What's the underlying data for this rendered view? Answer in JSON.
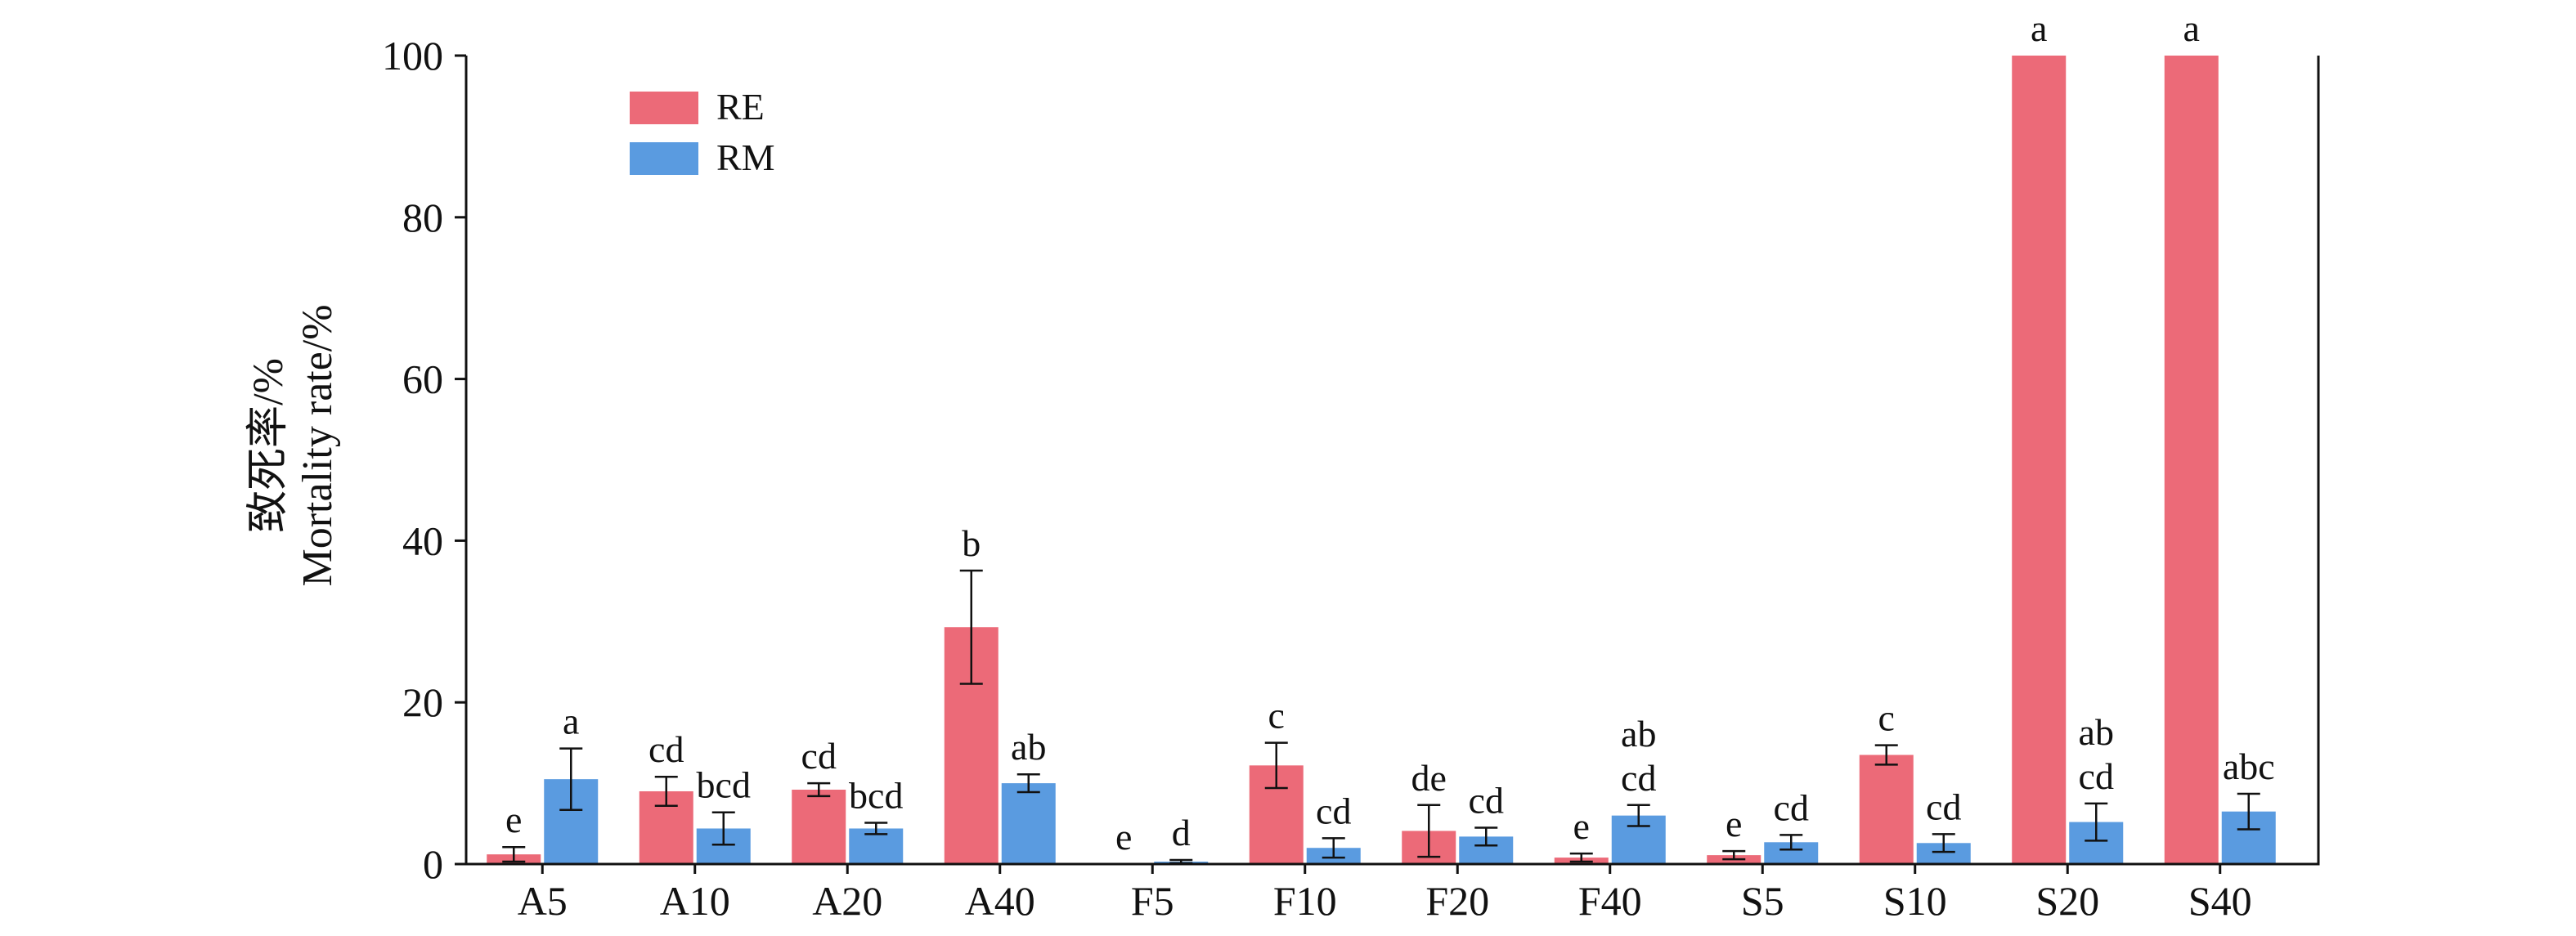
{
  "chart_data": {
    "type": "bar",
    "title": "",
    "xlabel": "",
    "ylabel_cn": "致死率/%",
    "ylabel_en": "Mortality rate/%",
    "ylim": [
      0,
      100
    ],
    "yticks": [
      0,
      20,
      40,
      60,
      80,
      100
    ],
    "legend_position": "top-left",
    "grid": false,
    "categories": [
      "A5",
      "A10",
      "A20",
      "A40",
      "F5",
      "F10",
      "F20",
      "F40",
      "S5",
      "S10",
      "S20",
      "S40"
    ],
    "series": [
      {
        "name": "RE",
        "color": "#ec6a78",
        "values": [
          1.2,
          9.0,
          9.2,
          29.3,
          0,
          12.2,
          4.1,
          0.8,
          1.1,
          13.5,
          100,
          100
        ],
        "errors": [
          0.9,
          1.8,
          0.8,
          7.0,
          0,
          2.8,
          3.2,
          0.5,
          0.5,
          1.2,
          0,
          0
        ],
        "labels": [
          [
            "e"
          ],
          [
            "cd"
          ],
          [
            "cd"
          ],
          [
            "b"
          ],
          [
            "e"
          ],
          [
            "c"
          ],
          [
            "de"
          ],
          [
            "e"
          ],
          [
            "e"
          ],
          [
            "c"
          ],
          [
            "a"
          ],
          [
            "a"
          ]
        ]
      },
      {
        "name": "RM",
        "color": "#5a9be0",
        "values": [
          10.5,
          4.4,
          4.4,
          10.0,
          0.3,
          2.0,
          3.4,
          6.0,
          2.7,
          2.6,
          5.2,
          6.5
        ],
        "errors": [
          3.8,
          2.0,
          0.7,
          1.1,
          0.2,
          1.2,
          1.1,
          1.3,
          0.9,
          1.1,
          2.3,
          2.2
        ],
        "labels": [
          [
            "a"
          ],
          [
            "bcd"
          ],
          [
            "bcd"
          ],
          [
            "ab"
          ],
          [
            "d"
          ],
          [
            "cd"
          ],
          [
            "cd"
          ],
          [
            "ab",
            "cd"
          ],
          [
            "cd"
          ],
          [
            "cd"
          ],
          [
            "ab",
            "cd"
          ],
          [
            "abc"
          ]
        ]
      }
    ]
  }
}
